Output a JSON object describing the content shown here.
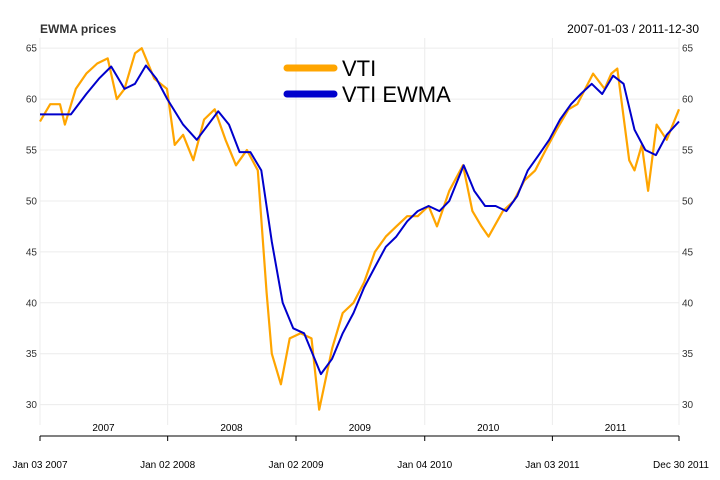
{
  "chart_data": {
    "type": "line",
    "title": "EWMA prices",
    "date_range": "2007-01-03 / 2011-12-30",
    "xlabel": "",
    "ylabel": "",
    "xlim": [
      "2007-01-03",
      "2011-12-30"
    ],
    "ylim": [
      28,
      66
    ],
    "y_ticks": [
      30,
      35,
      40,
      45,
      50,
      55,
      60,
      65
    ],
    "y_tick_labels_left": [
      "30",
      "35",
      "40",
      "45",
      "50",
      "55",
      "60",
      "65"
    ],
    "y_tick_labels_right": [
      "30",
      "35",
      "40",
      "45",
      "50",
      "55",
      "60",
      "65"
    ],
    "x_major_ticks": [
      {
        "date": "2007-01-03",
        "label": "Jan 03 2007"
      },
      {
        "date": "2008-01-02",
        "label": "Jan 02 2008"
      },
      {
        "date": "2009-01-02",
        "label": "Jan 02 2009"
      },
      {
        "date": "2010-01-04",
        "label": "Jan 04 2010"
      },
      {
        "date": "2011-01-03",
        "label": "Jan 03 2011"
      },
      {
        "date": "2011-12-30",
        "label": "Dec 30 2011"
      }
    ],
    "x_year_labels": [
      {
        "date": "2007-07-03",
        "label": "2007"
      },
      {
        "date": "2008-07-02",
        "label": "2008"
      },
      {
        "date": "2009-07-03",
        "label": "2009"
      },
      {
        "date": "2010-07-04",
        "label": "2010"
      },
      {
        "date": "2011-07-02",
        "label": "2011"
      }
    ],
    "grid": true,
    "legend_position": "top-center",
    "series": [
      {
        "name": "VTI",
        "color": "#FFA500",
        "x": [
          "2007-01-03",
          "2007-02-01",
          "2007-03-01",
          "2007-03-15",
          "2007-04-15",
          "2007-05-15",
          "2007-06-15",
          "2007-07-15",
          "2007-08-10",
          "2007-09-01",
          "2007-10-01",
          "2007-10-20",
          "2007-11-25",
          "2007-12-31",
          "2008-01-22",
          "2008-02-15",
          "2008-03-15",
          "2008-04-15",
          "2008-05-15",
          "2008-06-15",
          "2008-07-15",
          "2008-08-15",
          "2008-09-15",
          "2008-10-10",
          "2008-10-25",
          "2008-11-20",
          "2008-12-15",
          "2009-01-15",
          "2009-02-15",
          "2009-03-09",
          "2009-04-15",
          "2009-05-15",
          "2009-06-15",
          "2009-07-15",
          "2009-08-15",
          "2009-09-15",
          "2009-10-15",
          "2009-11-15",
          "2009-12-15",
          "2010-01-15",
          "2010-02-08",
          "2010-03-15",
          "2010-04-23",
          "2010-05-20",
          "2010-06-15",
          "2010-07-05",
          "2010-08-15",
          "2010-09-15",
          "2010-10-15",
          "2010-11-15",
          "2010-12-15",
          "2011-01-15",
          "2011-02-18",
          "2011-03-15",
          "2011-04-29",
          "2011-06-01",
          "2011-06-20",
          "2011-07-07",
          "2011-08-10",
          "2011-08-25",
          "2011-09-15",
          "2011-10-03",
          "2011-10-27",
          "2011-11-25",
          "2011-12-30"
        ],
        "values": [
          57.8,
          59.5,
          59.5,
          57.5,
          61.0,
          62.5,
          63.5,
          64.0,
          60.0,
          61.0,
          64.5,
          65.0,
          62.0,
          61.0,
          55.5,
          56.5,
          54.0,
          58.0,
          59.0,
          56.0,
          53.5,
          55.0,
          53.0,
          41.0,
          35.0,
          32.0,
          36.5,
          37.0,
          36.5,
          29.5,
          35.5,
          39.0,
          40.0,
          42.0,
          45.0,
          46.5,
          47.5,
          48.5,
          48.5,
          49.5,
          47.5,
          51.0,
          53.5,
          49.0,
          47.5,
          46.5,
          49.0,
          50.0,
          52.0,
          53.0,
          55.0,
          57.0,
          59.0,
          59.5,
          62.5,
          61.0,
          62.5,
          63.0,
          54.0,
          53.0,
          55.5,
          51.0,
          57.5,
          56.0,
          59.0
        ]
      },
      {
        "name": "VTI EWMA",
        "color": "#0000CC",
        "x": [
          "2007-01-03",
          "2007-04-01",
          "2007-05-15",
          "2007-06-20",
          "2007-07-25",
          "2007-09-01",
          "2007-10-01",
          "2007-11-01",
          "2007-12-01",
          "2008-01-01",
          "2008-02-15",
          "2008-03-25",
          "2008-05-25",
          "2008-06-25",
          "2008-07-25",
          "2008-08-25",
          "2008-09-25",
          "2008-10-25",
          "2008-11-25",
          "2008-12-25",
          "2009-01-25",
          "2009-03-14",
          "2009-04-15",
          "2009-05-15",
          "2009-06-15",
          "2009-07-15",
          "2009-08-15",
          "2009-09-15",
          "2009-10-15",
          "2009-11-15",
          "2009-12-15",
          "2010-01-15",
          "2010-02-15",
          "2010-03-15",
          "2010-04-25",
          "2010-05-25",
          "2010-06-25",
          "2010-07-25",
          "2010-08-25",
          "2010-09-25",
          "2010-10-25",
          "2010-11-25",
          "2010-12-25",
          "2011-01-25",
          "2011-02-25",
          "2011-03-25",
          "2011-04-25",
          "2011-05-25",
          "2011-06-25",
          "2011-07-25",
          "2011-08-25",
          "2011-09-25",
          "2011-10-25",
          "2011-11-25",
          "2011-12-30"
        ],
        "values": [
          58.5,
          58.5,
          60.5,
          62.0,
          63.2,
          61.0,
          61.5,
          63.3,
          62.0,
          60.0,
          57.5,
          56.0,
          58.8,
          57.5,
          54.8,
          54.8,
          53.0,
          46.0,
          40.0,
          37.5,
          37.0,
          33.0,
          34.5,
          37.0,
          39.0,
          41.5,
          43.5,
          45.5,
          46.5,
          48.0,
          49.0,
          49.5,
          49.0,
          50.0,
          53.5,
          51.0,
          49.5,
          49.5,
          49.0,
          50.5,
          53.0,
          54.5,
          56.0,
          58.0,
          59.5,
          60.5,
          61.5,
          60.5,
          62.3,
          61.5,
          57.0,
          55.0,
          54.5,
          56.5,
          57.8
        ]
      }
    ]
  }
}
